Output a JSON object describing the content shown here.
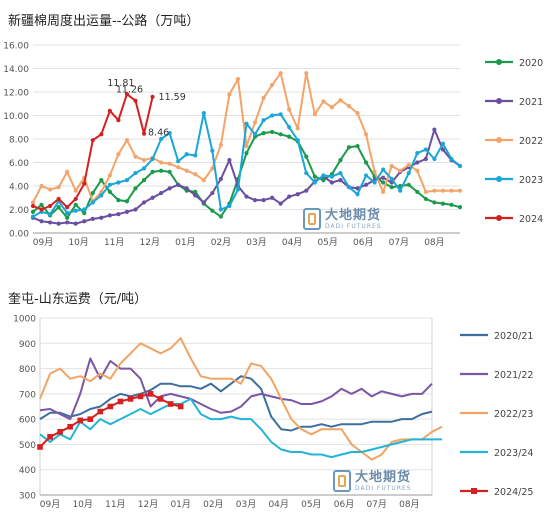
{
  "chart_data": [
    {
      "type": "line",
      "title": "新疆棉周度出运量--公路（万吨）",
      "xlabel": "",
      "ylabel": "",
      "ylim": [
        0,
        16
      ],
      "yticks": [
        "0.00",
        "2.00",
        "4.00",
        "6.00",
        "8.00",
        "10.00",
        "12.00",
        "14.00",
        "16.00"
      ],
      "xticks": [
        "09月",
        "10月",
        "11月",
        "12月",
        "01月",
        "02月",
        "03月",
        "04月",
        "05月",
        "06月",
        "07月",
        "08月"
      ],
      "grid": true,
      "legend_position": "right",
      "series": [
        {
          "name": "2020",
          "color": "#1a9a4a",
          "marker": "circle",
          "values": [
            1.8,
            2.4,
            1.5,
            2.2,
            1.3,
            2.4,
            1.7,
            3.4,
            4.5,
            3.5,
            2.8,
            2.7,
            3.8,
            4.5,
            5.2,
            5.3,
            5.2,
            4.1,
            3.6,
            3.5,
            2.5,
            1.9,
            1.4,
            2.5,
            4.6,
            6.8,
            8.2,
            8.5,
            8.6,
            8.4,
            8.2,
            7.8,
            6.5,
            4.8,
            4.5,
            5.0,
            6.2,
            7.3,
            7.4,
            6.0,
            4.8,
            4.3,
            3.9,
            4.0,
            4.1,
            3.5,
            2.9,
            2.6,
            2.5,
            2.4,
            2.2
          ]
        },
        {
          "name": "2021",
          "color": "#6a4fa0",
          "marker": "circle",
          "values": [
            1.3,
            1.0,
            0.9,
            0.8,
            0.9,
            0.8,
            1.0,
            1.2,
            1.3,
            1.5,
            1.6,
            1.8,
            2.0,
            2.6,
            3.0,
            3.4,
            3.8,
            4.1,
            3.8,
            3.2,
            2.6,
            3.4,
            4.6,
            6.2,
            4.0,
            3.1,
            2.8,
            2.8,
            3.0,
            2.5,
            3.1,
            3.3,
            3.6,
            4.4,
            4.8,
            4.3,
            4.5,
            3.9,
            3.8,
            4.1,
            4.5,
            4.7,
            4.3,
            5.2,
            5.6,
            6.0,
            6.3,
            8.8,
            7.1,
            6.2,
            5.7
          ]
        },
        {
          "name": "2022",
          "color": "#f2a46a",
          "marker": "circle",
          "values": [
            2.6,
            4.0,
            3.7,
            3.9,
            5.2,
            3.6,
            4.7,
            2.7,
            3.5,
            4.9,
            6.7,
            7.9,
            6.5,
            6.2,
            6.4,
            6.0,
            5.9,
            5.6,
            5.3,
            5.0,
            4.5,
            5.5,
            7.5,
            11.8,
            13.1,
            7.4,
            9.4,
            11.5,
            12.6,
            13.6,
            10.5,
            8.9,
            13.6,
            10.1,
            11.2,
            10.7,
            11.3,
            10.8,
            10.2,
            8.4,
            5.2,
            3.5,
            5.7,
            5.3,
            5.8,
            5.3,
            3.5,
            3.6,
            3.6,
            3.6,
            3.6
          ]
        },
        {
          "name": "2023",
          "color": "#1aa6d6",
          "marker": "circle",
          "values": [
            1.4,
            1.8,
            1.6,
            2.7,
            1.7,
            1.9,
            2.0,
            2.6,
            3.2,
            4.1,
            4.3,
            4.5,
            5.1,
            5.5,
            6.3,
            8.0,
            8.5,
            6.1,
            6.7,
            6.6,
            10.2,
            7.0,
            2.0,
            2.3,
            3.7,
            9.3,
            8.4,
            9.6,
            10.0,
            10.1,
            9.0,
            7.9,
            5.1,
            4.3,
            4.9,
            4.8,
            5.1,
            3.9,
            3.3,
            4.9,
            4.3,
            5.4,
            4.6,
            3.6,
            5.1,
            6.8,
            7.1,
            6.3,
            7.6,
            6.3,
            5.7
          ]
        },
        {
          "name": "2024",
          "color": "#d42020",
          "marker": "circle",
          "values": [
            2.3,
            2.0,
            2.3,
            2.9,
            2.2,
            2.9,
            4.2,
            7.9,
            8.4,
            10.4,
            9.6,
            11.81,
            11.26,
            8.46,
            11.59
          ]
        }
      ],
      "annotations": [
        {
          "text": "11.81",
          "x": 11,
          "y": 11.81
        },
        {
          "text": "11.26",
          "x": 12,
          "y": 11.26
        },
        {
          "text": "8.46",
          "x": 13,
          "y": 8.46
        },
        {
          "text": "11.59",
          "x": 14,
          "y": 11.59
        }
      ],
      "watermark": {
        "cn": "大地期货",
        "en": "DADI FUTURES"
      }
    },
    {
      "type": "line",
      "title": "奎屯-山东运费（元/吨）",
      "xlabel": "",
      "ylabel": "",
      "ylim": [
        300,
        1000
      ],
      "yticks": [
        "300",
        "400",
        "500",
        "600",
        "700",
        "800",
        "900",
        "1000"
      ],
      "xticks": [
        "09月",
        "10月",
        "11月",
        "12月",
        "01月",
        "02月",
        "03月",
        "04月",
        "05月",
        "06月",
        "07月",
        "08月"
      ],
      "grid": true,
      "legend_position": "right",
      "series": [
        {
          "name": "2020/21",
          "color": "#3c6e9e",
          "marker": "none",
          "values": [
            600,
            625,
            625,
            610,
            620,
            640,
            650,
            680,
            700,
            690,
            700,
            715,
            740,
            740,
            730,
            730,
            720,
            740,
            710,
            740,
            770,
            760,
            720,
            610,
            560,
            555,
            570,
            570,
            580,
            570,
            580,
            580,
            580,
            590,
            590,
            590,
            600,
            600,
            620,
            630
          ]
        },
        {
          "name": "2021/22",
          "color": "#7b56a6",
          "marker": "none",
          "values": [
            635,
            640,
            620,
            600,
            700,
            840,
            760,
            830,
            800,
            800,
            760,
            650,
            690,
            700,
            690,
            680,
            660,
            640,
            625,
            630,
            650,
            690,
            700,
            690,
            680,
            675,
            660,
            660,
            670,
            690,
            720,
            700,
            720,
            690,
            710,
            700,
            690,
            700,
            700,
            740
          ]
        },
        {
          "name": "2022/23",
          "color": "#f2a464",
          "marker": "none",
          "values": [
            680,
            780,
            800,
            760,
            770,
            750,
            780,
            760,
            820,
            860,
            900,
            880,
            860,
            880,
            920,
            840,
            770,
            760,
            760,
            760,
            740,
            820,
            810,
            760,
            680,
            600,
            560,
            540,
            560,
            560,
            560,
            500,
            470,
            440,
            460,
            510,
            520,
            520,
            520,
            550,
            570
          ]
        },
        {
          "name": "2023/24",
          "color": "#22b5d6",
          "marker": "none",
          "values": [
            540,
            510,
            540,
            520,
            590,
            560,
            600,
            580,
            600,
            620,
            640,
            620,
            640,
            660,
            660,
            680,
            620,
            600,
            600,
            610,
            600,
            600,
            560,
            510,
            480,
            470,
            470,
            460,
            460,
            450,
            460,
            470,
            470,
            480,
            490,
            500,
            510,
            520,
            520,
            520,
            520
          ]
        },
        {
          "name": "2024/25",
          "color": "#d42020",
          "marker": "square",
          "values": [
            490,
            530,
            550,
            570,
            595,
            600,
            630,
            650,
            670,
            680,
            690,
            700,
            680,
            660,
            650
          ]
        }
      ],
      "watermark": {
        "cn": "大地期货",
        "en": "DADI FUTURES"
      }
    }
  ]
}
